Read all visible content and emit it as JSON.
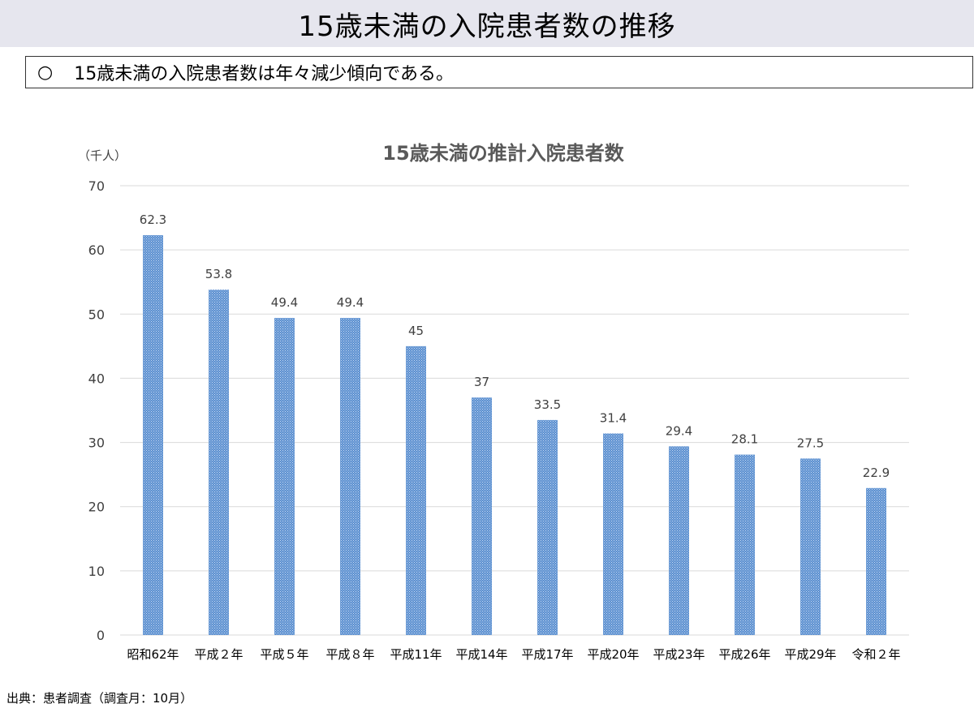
{
  "header": {
    "title": "15歳未満の入院患者数の推移"
  },
  "summary": {
    "bullet": "○",
    "text": "15歳未満の入院患者数は年々減少傾向である。"
  },
  "source": "出典：患者調査（調査月：10月）",
  "colors": {
    "bar": "#5b8fd0",
    "grid": "#d9d9d9",
    "title_bar": "#e6e6ee"
  },
  "chart_data": {
    "type": "bar",
    "title": "15歳未満の推計入院患者数",
    "ylabel": "（千人）",
    "xlabel": "",
    "ylim": [
      0,
      70
    ],
    "yticks": [
      0,
      10,
      20,
      30,
      40,
      50,
      60,
      70
    ],
    "grid": true,
    "legend": "none",
    "categories": [
      "昭和62年",
      "平成２年",
      "平成５年",
      "平成８年",
      "平成11年",
      "平成14年",
      "平成17年",
      "平成20年",
      "平成23年",
      "平成26年",
      "平成29年",
      "令和２年"
    ],
    "values": [
      62.3,
      53.8,
      49.4,
      49.4,
      45,
      37,
      33.5,
      31.4,
      29.4,
      28.1,
      27.5,
      22.9
    ]
  }
}
